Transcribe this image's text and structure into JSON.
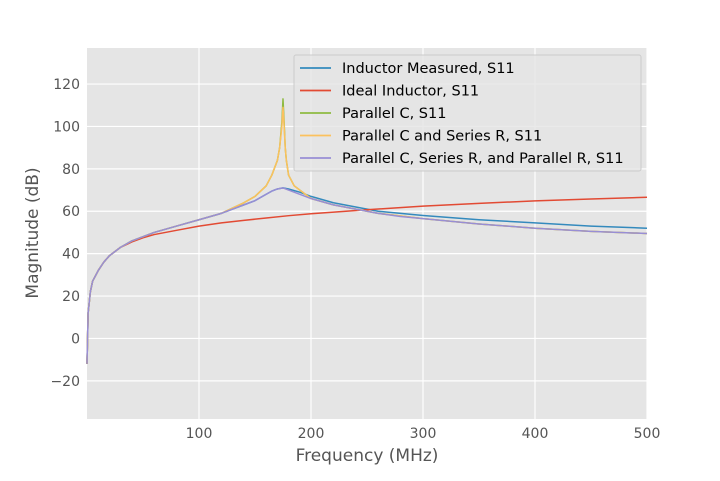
{
  "chart_data": {
    "type": "line",
    "title": "",
    "xlabel": "Frequency (MHz)",
    "ylabel": "Magnitude (dB)",
    "xlim": [
      0,
      500
    ],
    "ylim": [
      -38,
      137
    ],
    "xticks": [
      100,
      200,
      300,
      400,
      500
    ],
    "yticks": [
      -20,
      0,
      20,
      40,
      60,
      80,
      100,
      120
    ],
    "grid": true,
    "legend_position": "top-right",
    "colors": {
      "background": "#e5e5e5",
      "grid": "#ffffff",
      "text": "#555555"
    },
    "series": [
      {
        "name": "Inductor Measured, S11",
        "color": "#348abd",
        "x": [
          0,
          1,
          3,
          5,
          10,
          15,
          20,
          30,
          40,
          50,
          60,
          80,
          100,
          120,
          140,
          150,
          160,
          165,
          170,
          175,
          180,
          190,
          200,
          220,
          240,
          260,
          280,
          300,
          350,
          400,
          450,
          500
        ],
        "y": [
          -12,
          12,
          22,
          27,
          32,
          36,
          39,
          43,
          46,
          48,
          50,
          53,
          56,
          59,
          63,
          65,
          68,
          69.5,
          70.5,
          71,
          70.5,
          69,
          67,
          64,
          62,
          60,
          59,
          58,
          56,
          54.5,
          53,
          52
        ]
      },
      {
        "name": "Ideal Inductor, S11",
        "color": "#e24a33",
        "x": [
          0,
          1,
          3,
          5,
          10,
          15,
          20,
          30,
          40,
          50,
          60,
          80,
          100,
          120,
          140,
          160,
          180,
          200,
          250,
          300,
          350,
          400,
          450,
          500
        ],
        "y": [
          -12,
          12,
          22,
          27,
          32,
          36,
          39,
          43,
          45.5,
          47.5,
          49,
          51,
          53,
          54.5,
          55.7,
          56.8,
          57.9,
          58.8,
          60.7,
          62.4,
          63.7,
          64.9,
          65.8,
          66.6
        ]
      },
      {
        "name": "Parallel C, S11",
        "color": "#8eba42",
        "x": [
          0,
          1,
          3,
          5,
          10,
          15,
          20,
          30,
          40,
          50,
          60,
          80,
          100,
          120,
          140,
          150,
          160,
          165,
          170,
          172,
          174,
          175,
          176,
          177,
          178,
          180,
          185,
          190,
          200,
          220,
          240,
          260,
          300,
          350,
          400,
          450,
          500
        ],
        "y": [
          -12,
          12,
          22,
          27,
          32,
          36,
          39,
          43,
          46,
          48,
          50,
          53,
          56,
          59,
          64,
          67,
          72,
          77,
          84,
          90,
          102,
          113,
          102,
          90,
          84,
          77,
          72,
          70,
          66,
          63,
          61,
          59,
          56.5,
          54,
          52,
          50.5,
          49.5
        ]
      },
      {
        "name": "Parallel C and Series R, S11",
        "color": "#fbc15e",
        "x": [
          0,
          1,
          3,
          5,
          10,
          15,
          20,
          30,
          40,
          50,
          60,
          80,
          100,
          120,
          140,
          150,
          160,
          165,
          170,
          172,
          174,
          175,
          176,
          177,
          178,
          180,
          185,
          190,
          200,
          220,
          240,
          260,
          300,
          350,
          400,
          450,
          500
        ],
        "y": [
          -12,
          12,
          22,
          27,
          32,
          36,
          39,
          43,
          46,
          48,
          50,
          53,
          56,
          59,
          64,
          67,
          72,
          77,
          84,
          90,
          100,
          109,
          100,
          90,
          84,
          77,
          72,
          70,
          66,
          63,
          61,
          59,
          56.5,
          54,
          52,
          50.5,
          49.5
        ]
      },
      {
        "name": "Parallel C, Series R, and Parallel R, S11",
        "color": "#988ed5",
        "x": [
          0,
          1,
          3,
          5,
          10,
          15,
          20,
          30,
          40,
          50,
          60,
          80,
          100,
          120,
          140,
          150,
          160,
          165,
          170,
          175,
          180,
          190,
          200,
          220,
          240,
          260,
          280,
          300,
          350,
          400,
          450,
          500
        ],
        "y": [
          -12,
          12,
          22,
          27,
          32,
          36,
          39,
          43,
          46,
          48,
          50,
          53,
          56,
          59,
          63,
          65,
          68,
          69.5,
          70.5,
          71,
          70,
          68,
          66,
          63,
          61,
          59,
          57.5,
          56.5,
          54,
          52,
          50.5,
          49.5
        ]
      }
    ]
  }
}
